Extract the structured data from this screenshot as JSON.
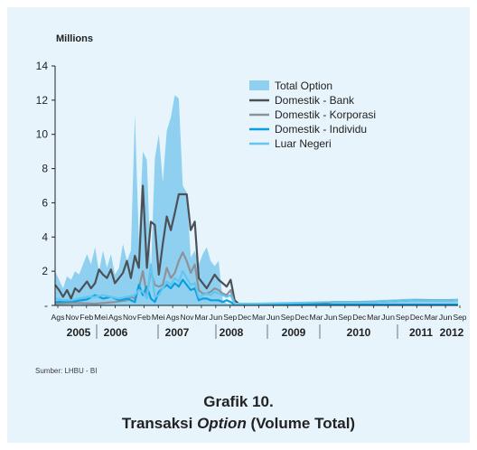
{
  "chart_data": {
    "type": "area",
    "unit_label": "Millions",
    "ylim": [
      0,
      14
    ],
    "y_ticks": [
      "-",
      "2",
      "4",
      "6",
      "8",
      "10",
      "12",
      "14"
    ],
    "x_ticks": [
      "Ags",
      "Nov",
      "Feb",
      "Mei",
      "Ags",
      "Nov",
      "Feb",
      "Mei",
      "Ags",
      "Nov",
      "Mar",
      "Jun",
      "Sep",
      "Dec",
      "Mar",
      "Jun",
      "Sep",
      "Dec",
      "Mar",
      "Jun",
      "Sep",
      "Dec",
      "Mar",
      "Jun",
      "Sep",
      "Dec",
      "Mar",
      "Jun",
      "Sep"
    ],
    "years": [
      "2005",
      "2006",
      "2007",
      "2008",
      "2009",
      "2010",
      "2011",
      "2012"
    ],
    "legend_position": "top-right",
    "series": [
      {
        "name": "Total Option",
        "color": "#8fd0f0",
        "style": "area",
        "points": [
          [
            0,
            2.0
          ],
          [
            1,
            1.5
          ],
          [
            2,
            1.0
          ],
          [
            3,
            1.7
          ],
          [
            4,
            1.5
          ],
          [
            5,
            2.0
          ],
          [
            6,
            1.8
          ],
          [
            7,
            2.4
          ],
          [
            8,
            3.0
          ],
          [
            9,
            2.4
          ],
          [
            10,
            3.4
          ],
          [
            11,
            2.0
          ],
          [
            12,
            3.2
          ],
          [
            13,
            2.2
          ],
          [
            14,
            3.0
          ],
          [
            15,
            1.8
          ],
          [
            16,
            2.2
          ],
          [
            17,
            3.6
          ],
          [
            18,
            2.6
          ],
          [
            19,
            3.2
          ],
          [
            20,
            11.2
          ],
          [
            21,
            3.8
          ],
          [
            22,
            9.0
          ],
          [
            23,
            8.5
          ],
          [
            24,
            1.8
          ],
          [
            25,
            8.6
          ],
          [
            26,
            10.0
          ],
          [
            27,
            7.2
          ],
          [
            28,
            10.2
          ],
          [
            29,
            11.0
          ],
          [
            30,
            12.3
          ],
          [
            31,
            12.1
          ],
          [
            32,
            7.0
          ],
          [
            33,
            6.6
          ],
          [
            34,
            2.8
          ],
          [
            35,
            3.2
          ],
          [
            36,
            2.4
          ],
          [
            37,
            3.0
          ],
          [
            38,
            3.4
          ],
          [
            39,
            2.6
          ],
          [
            40,
            2.3
          ],
          [
            41,
            2.6
          ],
          [
            42,
            0.3
          ],
          [
            43,
            0.1
          ],
          [
            50,
            0.1
          ],
          [
            60,
            0.1
          ],
          [
            70,
            0.2
          ],
          [
            80,
            0.3
          ],
          [
            90,
            0.4
          ],
          [
            97,
            0.35
          ],
          [
            101,
            0.4
          ]
        ]
      },
      {
        "name": "Domestik - Bank",
        "color": "#4b5157",
        "style": "line",
        "points": [
          [
            0,
            1.2
          ],
          [
            1,
            0.9
          ],
          [
            2,
            0.5
          ],
          [
            3,
            0.9
          ],
          [
            4,
            0.4
          ],
          [
            5,
            1.0
          ],
          [
            6,
            0.8
          ],
          [
            7,
            1.1
          ],
          [
            8,
            1.4
          ],
          [
            9,
            1.0
          ],
          [
            10,
            1.3
          ],
          [
            11,
            2.1
          ],
          [
            12,
            1.8
          ],
          [
            13,
            1.6
          ],
          [
            14,
            2.1
          ],
          [
            15,
            1.3
          ],
          [
            16,
            1.6
          ],
          [
            17,
            1.9
          ],
          [
            18,
            2.6
          ],
          [
            19,
            1.6
          ],
          [
            20,
            2.9
          ],
          [
            21,
            2.2
          ],
          [
            22,
            7.0
          ],
          [
            23,
            2.2
          ],
          [
            24,
            4.9
          ],
          [
            25,
            4.7
          ],
          [
            26,
            1.8
          ],
          [
            27,
            3.6
          ],
          [
            28,
            5.2
          ],
          [
            29,
            4.4
          ],
          [
            30,
            5.4
          ],
          [
            31,
            6.5
          ],
          [
            32,
            6.5
          ],
          [
            33,
            6.5
          ],
          [
            34,
            4.4
          ],
          [
            35,
            4.9
          ],
          [
            36,
            1.6
          ],
          [
            37,
            1.3
          ],
          [
            38,
            1.0
          ],
          [
            39,
            1.4
          ],
          [
            40,
            1.8
          ],
          [
            41,
            1.5
          ],
          [
            42,
            1.3
          ],
          [
            43,
            1.1
          ],
          [
            44,
            1.5
          ],
          [
            45,
            0.3
          ],
          [
            46,
            0.1
          ],
          [
            50,
            0.05
          ],
          [
            55,
            0.1
          ],
          [
            60,
            0.05
          ],
          [
            65,
            0.1
          ],
          [
            70,
            0.2
          ],
          [
            80,
            0.2
          ],
          [
            90,
            0.3
          ],
          [
            100,
            0.3
          ]
        ]
      },
      {
        "name": "Domestik - Korporasi",
        "color": "#8c9398",
        "style": "line",
        "points": [
          [
            0,
            0.1
          ],
          [
            5,
            0.15
          ],
          [
            10,
            0.1
          ],
          [
            15,
            0.2
          ],
          [
            18,
            0.3
          ],
          [
            19,
            0.5
          ],
          [
            20,
            0.4
          ],
          [
            21,
            1.0
          ],
          [
            22,
            2.0
          ],
          [
            23,
            0.6
          ],
          [
            24,
            2.0
          ],
          [
            25,
            1.2
          ],
          [
            26,
            1.1
          ],
          [
            27,
            1.2
          ],
          [
            28,
            2.2
          ],
          [
            29,
            1.6
          ],
          [
            30,
            1.9
          ],
          [
            31,
            2.6
          ],
          [
            32,
            3.1
          ],
          [
            33,
            2.6
          ],
          [
            34,
            1.9
          ],
          [
            35,
            2.4
          ],
          [
            36,
            0.9
          ],
          [
            37,
            0.7
          ],
          [
            38,
            0.7
          ],
          [
            39,
            0.8
          ],
          [
            40,
            1.0
          ],
          [
            41,
            0.9
          ],
          [
            42,
            0.7
          ],
          [
            43,
            0.6
          ],
          [
            44,
            0.9
          ],
          [
            45,
            0.1
          ],
          [
            46,
            0.05
          ],
          [
            101,
            0.05
          ]
        ]
      },
      {
        "name": "Domestik - Individu",
        "color": "#0aa0e0",
        "style": "line",
        "points": [
          [
            0,
            0.2
          ],
          [
            5,
            0.25
          ],
          [
            8,
            0.35
          ],
          [
            10,
            0.6
          ],
          [
            12,
            0.4
          ],
          [
            14,
            0.5
          ],
          [
            16,
            0.3
          ],
          [
            18,
            0.4
          ],
          [
            20,
            0.2
          ],
          [
            21,
            1.2
          ],
          [
            22,
            0.6
          ],
          [
            23,
            1.1
          ],
          [
            24,
            0.4
          ],
          [
            25,
            0.2
          ],
          [
            26,
            0.8
          ],
          [
            27,
            1.0
          ],
          [
            28,
            1.2
          ],
          [
            29,
            1.0
          ],
          [
            30,
            1.3
          ],
          [
            31,
            1.1
          ],
          [
            32,
            1.5
          ],
          [
            33,
            1.2
          ],
          [
            34,
            0.9
          ],
          [
            35,
            1.0
          ],
          [
            36,
            0.3
          ],
          [
            37,
            0.4
          ],
          [
            38,
            0.4
          ],
          [
            39,
            0.3
          ],
          [
            40,
            0.3
          ],
          [
            41,
            0.3
          ],
          [
            42,
            0.2
          ],
          [
            43,
            0.3
          ],
          [
            44,
            0.2
          ],
          [
            45,
            0.05
          ],
          [
            101,
            0.05
          ]
        ]
      },
      {
        "name": "Luar Negeri",
        "color": "#62c6f0",
        "style": "line",
        "points": [
          [
            0,
            0.4
          ],
          [
            2,
            0.3
          ],
          [
            4,
            0.3
          ],
          [
            6,
            0.4
          ],
          [
            8,
            0.5
          ],
          [
            10,
            0.5
          ],
          [
            12,
            0.6
          ],
          [
            14,
            0.5
          ],
          [
            16,
            0.4
          ],
          [
            18,
            0.5
          ],
          [
            20,
            0.6
          ],
          [
            21,
            0.9
          ],
          [
            22,
            0.8
          ],
          [
            23,
            0.4
          ],
          [
            24,
            2.4
          ],
          [
            25,
            0.5
          ],
          [
            26,
            0.6
          ],
          [
            27,
            1.0
          ],
          [
            28,
            1.4
          ],
          [
            29,
            1.2
          ],
          [
            30,
            1.6
          ],
          [
            31,
            1.4
          ],
          [
            32,
            2.0
          ],
          [
            33,
            1.6
          ],
          [
            34,
            1.2
          ],
          [
            35,
            1.3
          ],
          [
            36,
            0.5
          ],
          [
            37,
            0.6
          ],
          [
            38,
            0.7
          ],
          [
            39,
            0.6
          ],
          [
            40,
            0.8
          ],
          [
            41,
            0.7
          ],
          [
            42,
            0.6
          ],
          [
            43,
            0.5
          ],
          [
            44,
            0.6
          ],
          [
            45,
            0.1
          ],
          [
            50,
            0.1
          ],
          [
            60,
            0.15
          ],
          [
            70,
            0.2
          ],
          [
            80,
            0.2
          ],
          [
            90,
            0.3
          ],
          [
            101,
            0.3
          ]
        ]
      }
    ]
  },
  "source_text": "Sumber: LHBU - BI",
  "caption_line1": "Grafik 10.",
  "caption_line2_prefix": "Transaksi ",
  "caption_line2_italic": "Option",
  "caption_line2_suffix": " (Volume Total)"
}
